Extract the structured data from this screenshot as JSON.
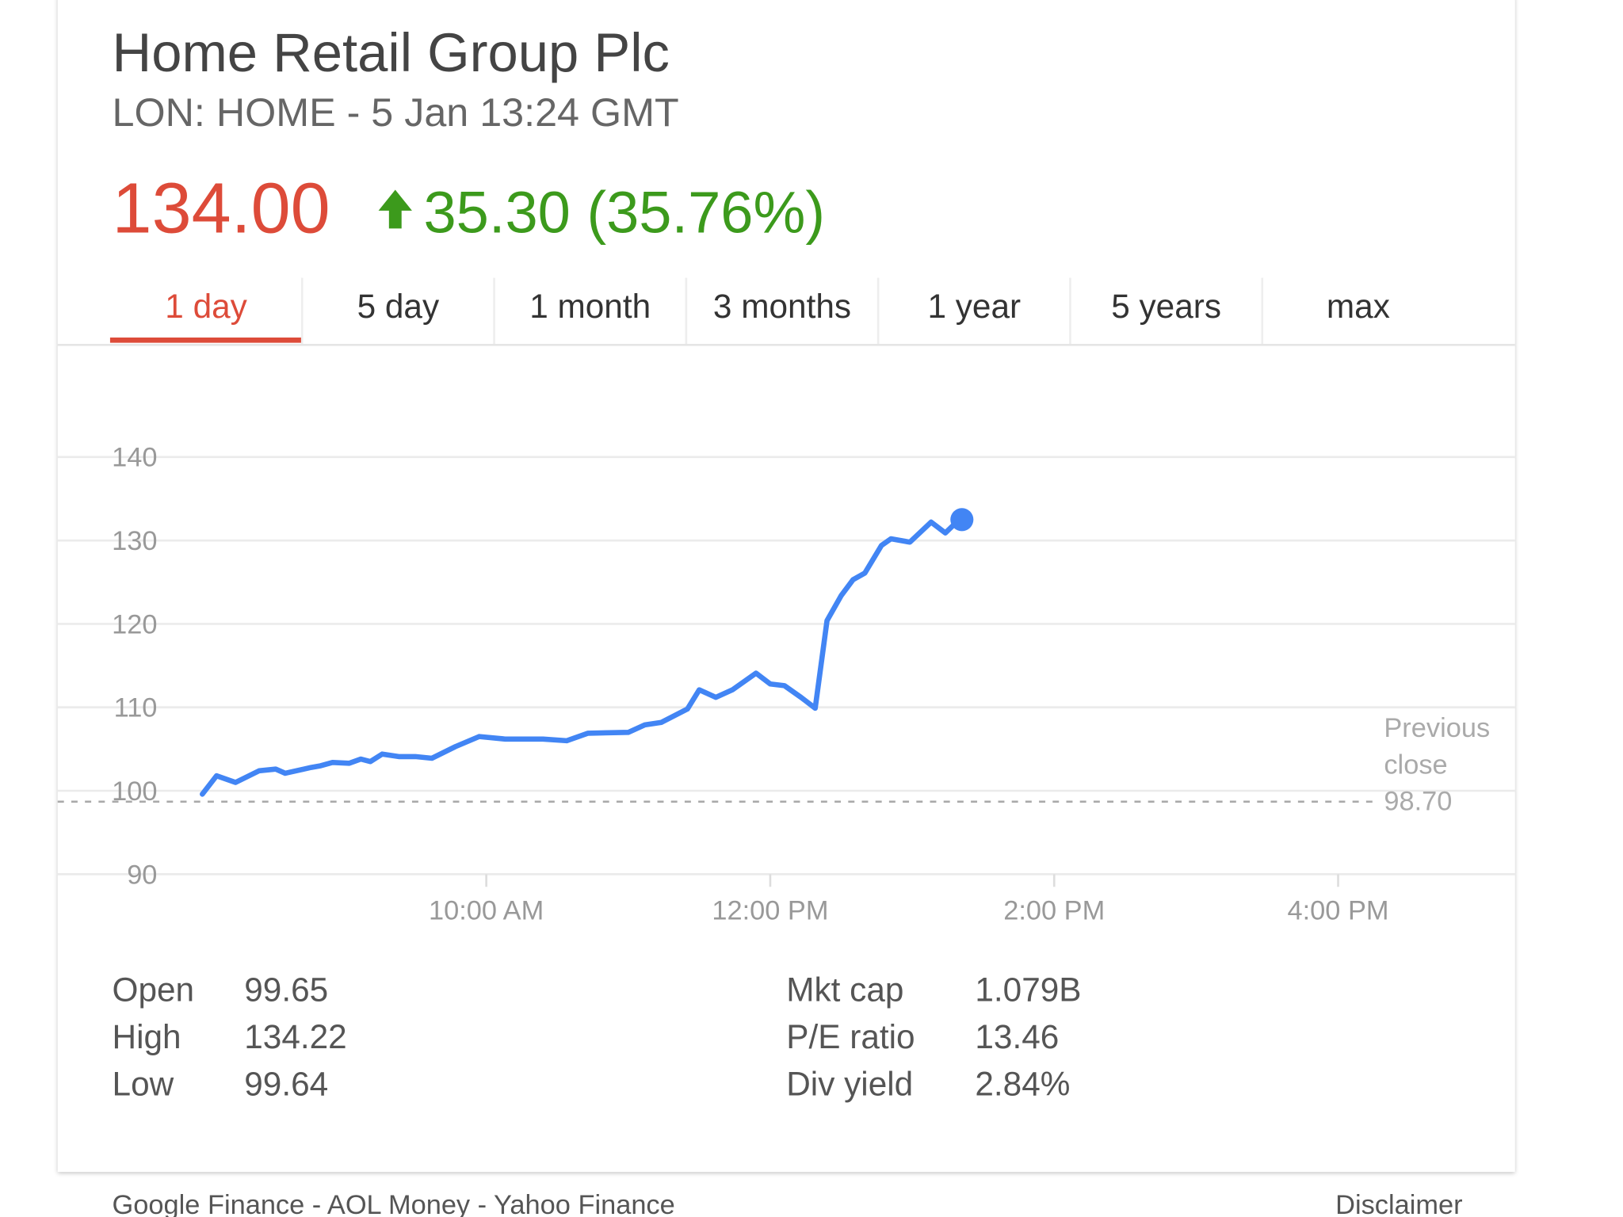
{
  "header": {
    "title": "Home Retail Group Plc",
    "subtitle": "LON: HOME - 5 Jan 13:24 GMT",
    "price": "134.00",
    "change": "35.30 (35.76%)"
  },
  "tabs": {
    "items": [
      "1 day",
      "5 day",
      "1 month",
      "3 months",
      "1 year",
      "5 years",
      "max"
    ],
    "selected": "1 day"
  },
  "chart_data": {
    "type": "line",
    "color": "#4285f4",
    "x": [
      "08:00",
      "08:06",
      "08:14",
      "08:24",
      "08:31",
      "08:35",
      "08:46",
      "08:50",
      "08:55",
      "09:02",
      "09:07",
      "09:11",
      "09:16",
      "09:23",
      "09:30",
      "09:37",
      "09:47",
      "09:57",
      "10:08",
      "10:24",
      "10:34",
      "10:43",
      "11:00",
      "11:07",
      "11:14",
      "11:25",
      "11:30",
      "11:37",
      "11:44",
      "11:54",
      "12:00",
      "12:06",
      "12:13",
      "12:19",
      "12:24",
      "12:30",
      "12:35",
      "12:40",
      "12:47",
      "12:51",
      "12:59",
      "13:08",
      "13:14",
      "13:18",
      "13:21"
    ],
    "values": [
      99.6,
      101.8,
      101.0,
      102.4,
      102.6,
      102.1,
      102.8,
      103.0,
      103.4,
      103.3,
      103.8,
      103.5,
      104.4,
      104.1,
      104.1,
      103.9,
      105.3,
      106.5,
      106.2,
      106.2,
      106.0,
      106.9,
      107.0,
      107.9,
      108.2,
      109.8,
      112.1,
      111.2,
      112.1,
      114.1,
      112.8,
      112.6,
      111.2,
      109.9,
      120.4,
      123.4,
      125.3,
      126.1,
      129.4,
      130.2,
      129.8,
      132.2,
      130.9,
      132.0,
      132.5
    ],
    "xlim": [
      "08:00",
      "16:30"
    ],
    "xticks": [
      {
        "value": "10:00",
        "label": "10:00 AM"
      },
      {
        "value": "12:00",
        "label": "12:00 PM"
      },
      {
        "value": "14:00",
        "label": "2:00 PM"
      },
      {
        "value": "16:00",
        "label": "4:00 PM"
      }
    ],
    "ylim": [
      90,
      140
    ],
    "yticks": [
      90,
      100,
      110,
      120,
      130,
      140
    ],
    "grid": true,
    "previous_close": {
      "label": "Previous close",
      "value": 98.7,
      "value_label": "98.70"
    }
  },
  "stats": {
    "left": [
      {
        "label": "Open",
        "value": "99.65"
      },
      {
        "label": "High",
        "value": "134.22"
      },
      {
        "label": "Low",
        "value": "99.64"
      }
    ],
    "right": [
      {
        "label": "Mkt cap",
        "value": "1.079B"
      },
      {
        "label": "P/E ratio",
        "value": "13.46"
      },
      {
        "label": "Div yield",
        "value": "2.84%"
      }
    ]
  },
  "footer": {
    "sources": "Google Finance - AOL Money - Yahoo Finance",
    "disclaimer": "Disclaimer"
  }
}
